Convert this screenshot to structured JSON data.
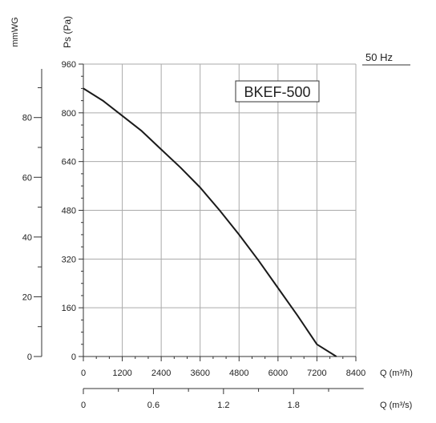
{
  "chart_data": {
    "type": "line",
    "title": "BKEF-500",
    "frequency_label": "50 Hz",
    "ylabel_left": "Ps (Pa)",
    "ylabel_outer": "mmWG",
    "xlabel_bottom": "Q (m³/h)",
    "xlabel_secondary": "Q (m³/s)",
    "xlim": [
      0,
      8400
    ],
    "ylim": [
      0,
      960
    ],
    "x_ticks": [
      0,
      1200,
      2400,
      3600,
      4800,
      6000,
      7200,
      8400
    ],
    "x_tick_labels": [
      "0",
      "1200",
      "2400",
      "3600",
      "4800",
      "6000",
      "7200",
      "8400"
    ],
    "y_ticks": [
      0,
      160,
      320,
      480,
      640,
      800,
      960
    ],
    "y_tick_labels": [
      "0",
      "160",
      "320",
      "480",
      "640",
      "800",
      "960"
    ],
    "mmwg_ticks": [
      0,
      20,
      40,
      60,
      80
    ],
    "mmwg_tick_labels": [
      "0",
      "20",
      "40",
      "60",
      "80"
    ],
    "m3s_ticks": [
      0,
      0.6,
      1.2,
      1.8
    ],
    "m3s_tick_labels": [
      "0",
      "0.6",
      "1.2",
      "1.8"
    ],
    "grid": true,
    "series": [
      {
        "x": [
          0,
          600,
          1200,
          1800,
          2400,
          3000,
          3600,
          4200,
          4800,
          5400,
          6000,
          6600,
          7200,
          7800,
          8100
        ],
        "y": [
          880,
          840,
          790,
          740,
          680,
          620,
          555,
          480,
          400,
          315,
          225,
          135,
          40,
          0,
          0
        ]
      }
    ],
    "colors": {
      "curve": "#1a1a1a",
      "grid": "#aaaaaa",
      "axis": "#333333"
    }
  }
}
